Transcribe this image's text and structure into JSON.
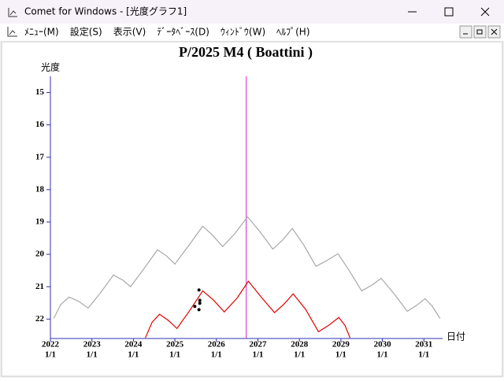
{
  "window": {
    "title": "Comet for Windows - [光度グラフ1]"
  },
  "menu": [
    "ﾒﾆｭｰ(M)",
    "設定(S)",
    "表示(V)",
    "ﾃﾞｰﾀﾍﾞｰｽ(D)",
    "ｳｨﾝﾄﾞｳ(W)",
    "ﾍﾙﾌﾟ(H)"
  ],
  "chart_data": {
    "type": "line",
    "title": "P/2025 M4 ( Boattini )",
    "ylabel": "光度",
    "xlabel": "日付",
    "xlim": [
      2022,
      2031.45
    ],
    "ylim": [
      22.6,
      14.5
    ],
    "yinverted": true,
    "yticks": [
      15,
      16,
      17,
      18,
      19,
      20,
      21,
      22
    ],
    "xticks": [
      2022,
      2023,
      2024,
      2025,
      2026,
      2027,
      2028,
      2029,
      2030,
      2031
    ],
    "xtick_sublabels": [
      "1/1",
      "1/1",
      "1/1",
      "1/1",
      "1/1",
      "1/1",
      "1/1",
      "1/1",
      "1/1",
      "1/1"
    ],
    "axis_color": "#3030b0",
    "marker_x": 2026.72,
    "marker_color": "#d020d0",
    "series": [
      {
        "color": "#a8a8a8",
        "x": [
          2022.08,
          2022.25,
          2022.45,
          2022.68,
          2022.91,
          2023.2,
          2023.52,
          2023.75,
          2023.93,
          2024.25,
          2024.58,
          2024.8,
          2025.0,
          2025.35,
          2025.67,
          2025.9,
          2026.15,
          2026.45,
          2026.75,
          2027.05,
          2027.36,
          2027.6,
          2027.83,
          2028.1,
          2028.4,
          2028.65,
          2028.93,
          2029.2,
          2029.5,
          2029.75,
          2029.97,
          2030.3,
          2030.6,
          2030.82,
          2031.03,
          2031.2,
          2031.39
        ],
        "values": [
          21.98,
          21.55,
          21.32,
          21.45,
          21.66,
          21.2,
          20.64,
          20.8,
          21.0,
          20.45,
          19.86,
          20.05,
          20.3,
          19.7,
          19.13,
          19.4,
          19.76,
          19.35,
          18.84,
          19.3,
          19.84,
          19.55,
          19.2,
          19.7,
          20.37,
          20.2,
          19.98,
          20.5,
          21.13,
          20.95,
          20.74,
          21.25,
          21.76,
          21.58,
          21.37,
          21.6,
          21.98
        ]
      },
      {
        "color": "#e00000",
        "x": [
          2024.29,
          2024.45,
          2024.63,
          2024.85,
          2025.05,
          2025.35,
          2025.67,
          2025.92,
          2026.19,
          2026.5,
          2026.77,
          2027.1,
          2027.4,
          2027.62,
          2027.85,
          2028.15,
          2028.46,
          2028.7,
          2028.95,
          2029.1,
          2029.22
        ],
        "values": [
          22.58,
          22.1,
          21.85,
          22.05,
          22.29,
          21.75,
          21.13,
          21.4,
          21.78,
          21.35,
          20.83,
          21.35,
          21.8,
          21.55,
          21.22,
          21.7,
          22.39,
          22.2,
          21.95,
          22.2,
          22.58
        ]
      }
    ],
    "observations": {
      "color": "#000000",
      "x": [
        2025.58,
        2025.6,
        2025.6,
        2025.48,
        2025.58
      ],
      "values": [
        21.1,
        21.42,
        21.51,
        21.61,
        21.71
      ]
    }
  }
}
